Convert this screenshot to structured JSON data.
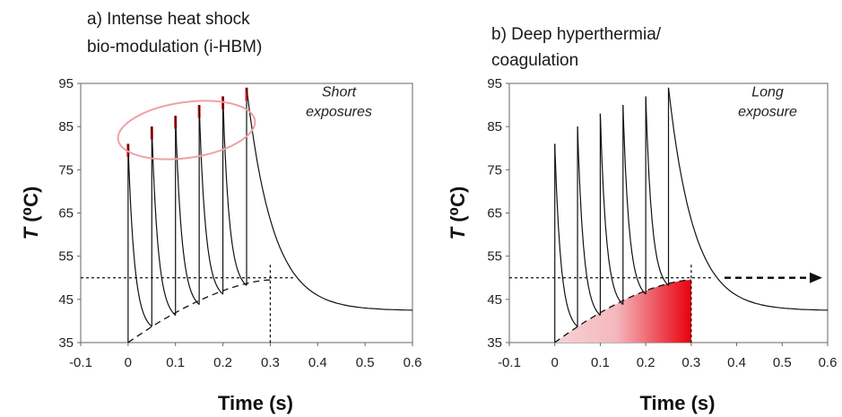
{
  "chart_data": [
    {
      "type": "line",
      "title": [
        "a) Intense heat shock",
        "bio-modulation (i-HBM)"
      ],
      "xlabel": "Time (s)",
      "ylabel_italic": "T",
      "ylabel_rest": " (⁰C)",
      "xlim": [
        -0.1,
        0.6
      ],
      "ylim": [
        35,
        95
      ],
      "xticks": [
        "-0.1",
        "0",
        "0.1",
        "0.2",
        "0.3",
        "0.4",
        "0.5",
        "0.6"
      ],
      "yticks": [
        "35",
        "45",
        "55",
        "65",
        "75",
        "85",
        "95"
      ],
      "grid": false,
      "pulse_times": [
        0,
        0.05,
        0.1,
        0.15,
        0.2,
        0.25
      ],
      "pulse_peaks": [
        81,
        85,
        87.5,
        90,
        92,
        94
      ],
      "pulse_base": [
        35,
        38.7,
        41.3,
        43.8,
        46.2,
        48.2
      ],
      "red_tip_height": 3,
      "decay_end": {
        "x": 0.6,
        "y": 42.5
      },
      "envelope": {
        "x_start": 0,
        "y_start": 35,
        "x_end": 0.3,
        "y_end": 49.5
      },
      "threshold_y": 50,
      "threshold_x_end": 0.35,
      "end_time": 0.3,
      "annotation": [
        "Short",
        "exposures"
      ],
      "highlight": "ellipse",
      "colors": {
        "line": "#111111",
        "tip": "#e8141c",
        "ellipse": "#f0a0a6"
      }
    },
    {
      "type": "line",
      "title": [
        "b) Deep hyperthermia/",
        "coagulation"
      ],
      "xlabel": "Time (s)",
      "ylabel_italic": "T",
      "ylabel_rest": " (⁰C)",
      "xlim": [
        -0.1,
        0.6
      ],
      "ylim": [
        35,
        95
      ],
      "xticks": [
        "-0.1",
        "0",
        "0.1",
        "0.2",
        "0.3",
        "0.4",
        "0.5",
        "0.6"
      ],
      "yticks": [
        "35",
        "45",
        "55",
        "65",
        "75",
        "85",
        "95"
      ],
      "grid": false,
      "pulse_times": [
        0,
        0.05,
        0.1,
        0.15,
        0.2,
        0.25
      ],
      "pulse_peaks": [
        81,
        85,
        88,
        90,
        92,
        94
      ],
      "pulse_base": [
        35,
        38.7,
        41.3,
        43.8,
        46.2,
        48.2
      ],
      "red_tip_height": 0,
      "decay_end": {
        "x": 0.6,
        "y": 42.5
      },
      "envelope": {
        "x_start": 0,
        "y_start": 35,
        "x_end": 0.3,
        "y_end": 49.5
      },
      "threshold_y": 50,
      "threshold_x_end": 0.35,
      "end_time": 0.3,
      "annotation": [
        "Long",
        "exposure"
      ],
      "highlight": "shaded-area-with-arrow",
      "colors": {
        "line": "#111111",
        "fill_start": "#f6d2d6",
        "fill_end": "#e8000e"
      }
    }
  ]
}
